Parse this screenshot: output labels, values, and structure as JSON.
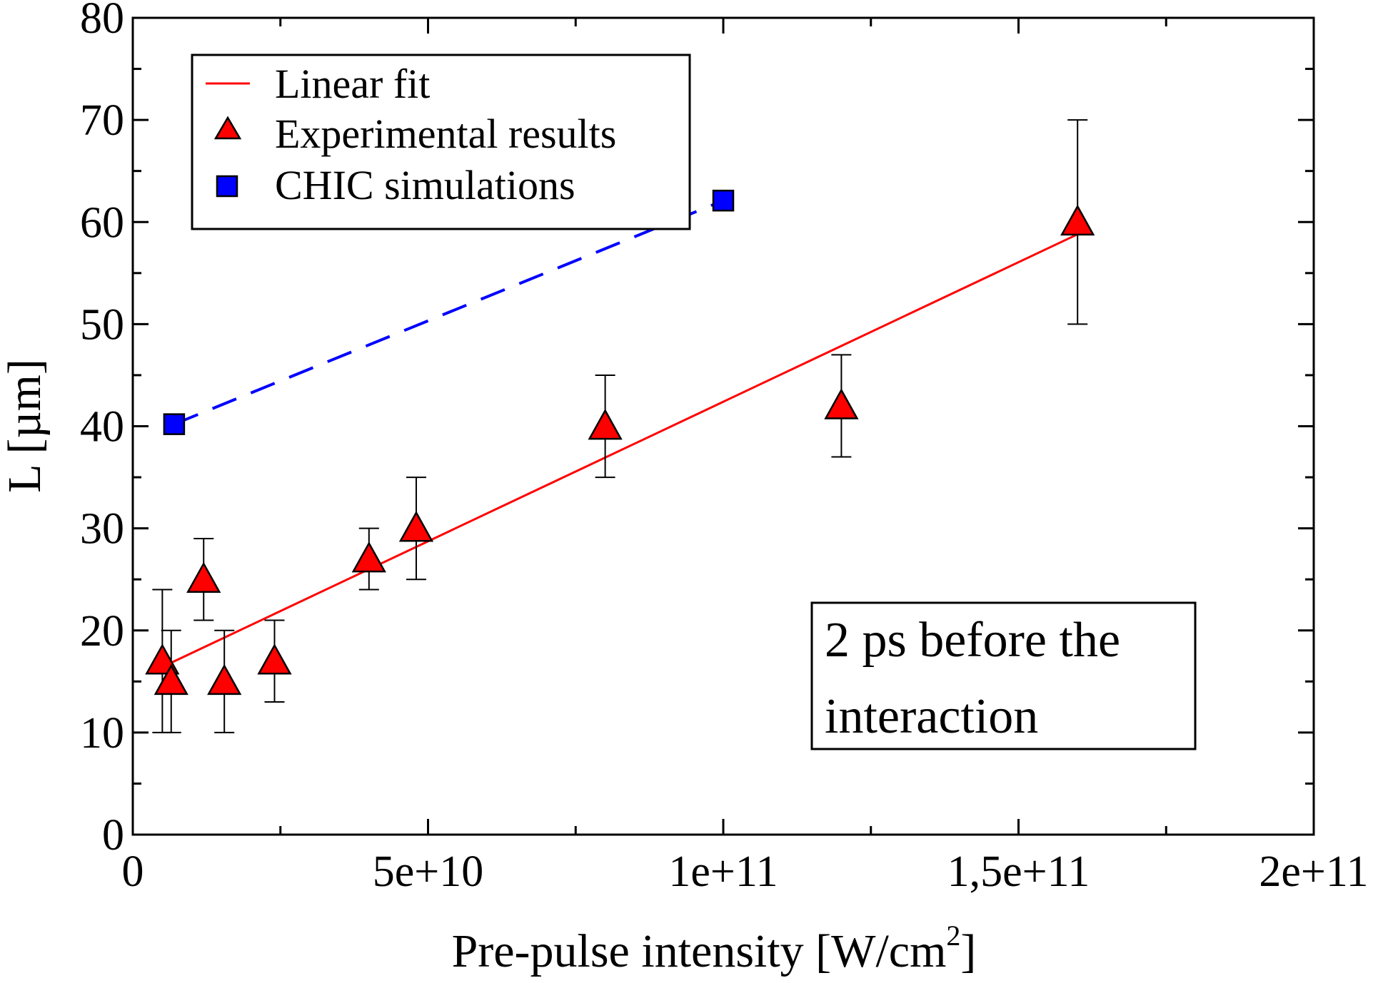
{
  "chart_data": {
    "type": "scatter",
    "xlabel": "Pre-pulse intensity [W/cm",
    "xlabel_sup": "2",
    "xlabel_end": "]",
    "ylabel": "L [µm]",
    "xlim": [
      0,
      200000000000
    ],
    "ylim": [
      0,
      80
    ],
    "x_ticks": [
      {
        "value": 0,
        "label": "0"
      },
      {
        "value": 50000000000,
        "label": "5e+10"
      },
      {
        "value": 100000000000,
        "label": "1e+11"
      },
      {
        "value": 150000000000,
        "label": "1,5e+11"
      },
      {
        "value": 200000000000,
        "label": "2e+11"
      }
    ],
    "x_minor_ticks": [
      25000000000,
      75000000000,
      125000000000,
      175000000000
    ],
    "y_ticks": [
      {
        "value": 0,
        "label": "0"
      },
      {
        "value": 10,
        "label": "10"
      },
      {
        "value": 20,
        "label": "20"
      },
      {
        "value": 30,
        "label": "30"
      },
      {
        "value": 40,
        "label": "40"
      },
      {
        "value": 50,
        "label": "50"
      },
      {
        "value": 60,
        "label": "60"
      },
      {
        "value": 70,
        "label": "70"
      },
      {
        "value": 80,
        "label": "80"
      }
    ],
    "y_minor_ticks": [
      5,
      15,
      25,
      35,
      45,
      55,
      65,
      75
    ],
    "grid": false,
    "legend_position": "top-left",
    "series": [
      {
        "name": "Linear fit",
        "kind": "line",
        "color": "#ff0000",
        "x": [
          6000000000,
          160000000000
        ],
        "y": [
          16.7,
          58.8
        ]
      },
      {
        "name": "Experimental results",
        "kind": "scatter",
        "marker": "triangle",
        "color": "#ff0000",
        "points": [
          {
            "x": 5000000000,
            "y": 17,
            "err_low": 10,
            "err_high": 24
          },
          {
            "x": 6500000000,
            "y": 15,
            "err_low": 10,
            "err_high": 20
          },
          {
            "x": 12000000000,
            "y": 25,
            "err_low": 21,
            "err_high": 29
          },
          {
            "x": 15500000000,
            "y": 15,
            "err_low": 10,
            "err_high": 20
          },
          {
            "x": 24000000000,
            "y": 17,
            "err_low": 13,
            "err_high": 21
          },
          {
            "x": 40000000000,
            "y": 27,
            "err_low": 24,
            "err_high": 30
          },
          {
            "x": 48000000000,
            "y": 30,
            "err_low": 25,
            "err_high": 35
          },
          {
            "x": 80000000000,
            "y": 40,
            "err_low": 35,
            "err_high": 45
          },
          {
            "x": 120000000000,
            "y": 42,
            "err_low": 37,
            "err_high": 47
          },
          {
            "x": 160000000000,
            "y": 60,
            "err_low": 50,
            "err_high": 70
          }
        ]
      },
      {
        "name": "CHIC simulations",
        "kind": "scatter",
        "marker": "square",
        "color": "#0000ff",
        "points": [
          {
            "x": 7000000000,
            "y": 40.2
          },
          {
            "x": 100000000000,
            "y": 62.1
          }
        ]
      },
      {
        "kind": "dashed-line",
        "color": "#0000ff",
        "x": [
          7000000000,
          100000000000
        ],
        "y": [
          40.2,
          62.1
        ]
      }
    ],
    "annotation": {
      "lines": [
        "2 ps before the",
        "interaction"
      ],
      "position": "bottom-right"
    }
  }
}
